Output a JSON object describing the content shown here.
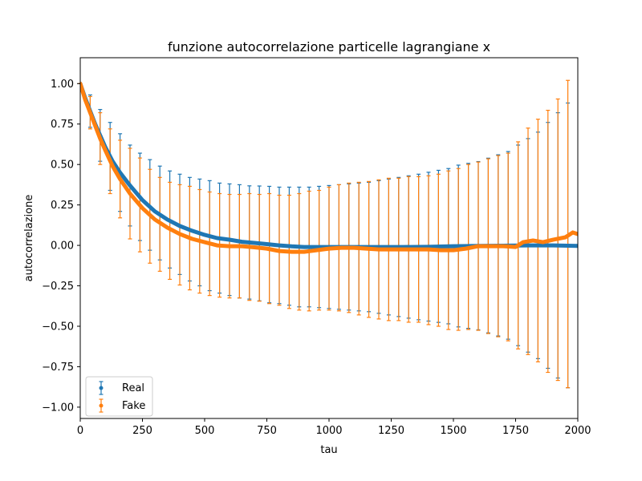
{
  "chart_data": {
    "type": "scatter",
    "title": "funzione autocorrelazione particelle lagrangiane x",
    "xlabel": "tau",
    "ylabel": "autocorrelazione",
    "xlim": [
      0,
      2000
    ],
    "ylim": [
      -1.07,
      1.16
    ],
    "xticks": [
      0,
      250,
      500,
      750,
      1000,
      1250,
      1500,
      1750,
      2000
    ],
    "xtick_labels": [
      "0",
      "250",
      "500",
      "750",
      "1000",
      "1250",
      "1500",
      "1750",
      "2000"
    ],
    "yticks": [
      -1.0,
      -0.75,
      -0.5,
      -0.25,
      0.0,
      0.25,
      0.5,
      0.75,
      1.0
    ],
    "ytick_labels": [
      "−1.00",
      "−0.75",
      "−0.50",
      "−0.25",
      "0.00",
      "0.25",
      "0.50",
      "0.75",
      "1.00"
    ],
    "grid": false,
    "legend_position": "lower-left",
    "series": [
      {
        "name": "Real",
        "color": "#1f77b4",
        "errorbars": {
          "tau": [
            0,
            40,
            80,
            120,
            160,
            200,
            240,
            280,
            320,
            360,
            400,
            440,
            480,
            520,
            560,
            600,
            640,
            680,
            720,
            760,
            800,
            840,
            880,
            920,
            960,
            1000,
            1040,
            1080,
            1120,
            1160,
            1200,
            1240,
            1280,
            1320,
            1360,
            1400,
            1440,
            1480,
            1520,
            1560,
            1600,
            1640,
            1680,
            1720,
            1760,
            1800,
            1840,
            1880,
            1920,
            1960
          ],
          "value": [
            1.0,
            0.83,
            0.68,
            0.55,
            0.45,
            0.37,
            0.3,
            0.25,
            0.2,
            0.16,
            0.13,
            0.1,
            0.08,
            0.06,
            0.045,
            0.035,
            0.025,
            0.018,
            0.012,
            0.005,
            0.0,
            -0.005,
            -0.01,
            -0.01,
            -0.01,
            -0.01,
            -0.01,
            -0.01,
            -0.01,
            -0.01,
            -0.01,
            -0.01,
            -0.01,
            -0.01,
            -0.01,
            -0.008,
            -0.006,
            -0.005,
            -0.004,
            -0.003,
            -0.002,
            -0.001,
            0.0,
            0.0,
            0.0,
            0.0,
            0.0,
            0.0,
            0.0,
            0.0
          ],
          "error": [
            0.0,
            0.1,
            0.16,
            0.21,
            0.24,
            0.25,
            0.27,
            0.28,
            0.29,
            0.3,
            0.31,
            0.32,
            0.33,
            0.34,
            0.34,
            0.345,
            0.35,
            0.35,
            0.355,
            0.36,
            0.36,
            0.365,
            0.37,
            0.37,
            0.375,
            0.38,
            0.385,
            0.39,
            0.395,
            0.4,
            0.41,
            0.42,
            0.43,
            0.44,
            0.45,
            0.46,
            0.47,
            0.48,
            0.5,
            0.51,
            0.52,
            0.54,
            0.56,
            0.58,
            0.62,
            0.66,
            0.7,
            0.76,
            0.82,
            0.88
          ]
        }
      },
      {
        "name": "Fake",
        "color": "#ff7f0e",
        "errorbars": {
          "tau": [
            0,
            40,
            80,
            120,
            160,
            200,
            240,
            280,
            320,
            360,
            400,
            440,
            480,
            520,
            560,
            600,
            640,
            680,
            720,
            760,
            800,
            840,
            880,
            920,
            960,
            1000,
            1040,
            1080,
            1120,
            1160,
            1200,
            1240,
            1280,
            1320,
            1360,
            1400,
            1440,
            1480,
            1520,
            1560,
            1600,
            1640,
            1680,
            1720,
            1760,
            1800,
            1840,
            1880,
            1920,
            1960
          ],
          "value": [
            1.0,
            0.82,
            0.66,
            0.52,
            0.41,
            0.32,
            0.25,
            0.18,
            0.13,
            0.09,
            0.065,
            0.045,
            0.025,
            0.01,
            0.0,
            -0.005,
            -0.005,
            -0.01,
            -0.015,
            -0.02,
            -0.03,
            -0.04,
            -0.04,
            -0.035,
            -0.03,
            -0.02,
            -0.015,
            -0.015,
            -0.02,
            -0.025,
            -0.025,
            -0.025,
            -0.025,
            -0.025,
            -0.025,
            -0.03,
            -0.03,
            -0.03,
            -0.025,
            -0.01,
            -0.005,
            -0.005,
            -0.005,
            -0.01,
            0.0,
            0.025,
            0.03,
            0.025,
            0.035,
            0.07
          ],
          "error": [
            0.0,
            0.1,
            0.16,
            0.2,
            0.24,
            0.28,
            0.29,
            0.29,
            0.29,
            0.3,
            0.31,
            0.32,
            0.32,
            0.32,
            0.32,
            0.32,
            0.32,
            0.33,
            0.33,
            0.34,
            0.34,
            0.35,
            0.36,
            0.37,
            0.37,
            0.38,
            0.39,
            0.4,
            0.41,
            0.42,
            0.43,
            0.44,
            0.44,
            0.45,
            0.45,
            0.46,
            0.47,
            0.49,
            0.5,
            0.51,
            0.52,
            0.54,
            0.56,
            0.58,
            0.64,
            0.7,
            0.75,
            0.81,
            0.87,
            0.95
          ]
        },
        "curve": {
          "tau": [
            0,
            20,
            40,
            60,
            80,
            100,
            130,
            160,
            200,
            250,
            300,
            350,
            400,
            450,
            500,
            550,
            600,
            650,
            700,
            750,
            800,
            850,
            900,
            950,
            1000,
            1050,
            1100,
            1150,
            1200,
            1250,
            1300,
            1350,
            1400,
            1450,
            1500,
            1550,
            1600,
            1650,
            1700,
            1750,
            1780,
            1820,
            1860,
            1900,
            1950,
            1980,
            2000
          ],
          "value": [
            1.0,
            0.9,
            0.82,
            0.74,
            0.66,
            0.59,
            0.49,
            0.41,
            0.32,
            0.23,
            0.16,
            0.11,
            0.07,
            0.04,
            0.02,
            0.0,
            -0.005,
            -0.005,
            -0.012,
            -0.02,
            -0.035,
            -0.04,
            -0.04,
            -0.03,
            -0.02,
            -0.015,
            -0.015,
            -0.02,
            -0.025,
            -0.025,
            -0.025,
            -0.025,
            -0.025,
            -0.03,
            -0.03,
            -0.02,
            -0.005,
            -0.005,
            -0.005,
            -0.01,
            0.02,
            0.03,
            0.02,
            0.035,
            0.05,
            0.08,
            0.07
          ]
        }
      }
    ],
    "real_curve": {
      "tau": [
        0,
        20,
        40,
        60,
        80,
        100,
        130,
        160,
        200,
        250,
        300,
        350,
        400,
        450,
        500,
        550,
        600,
        650,
        700,
        750,
        800,
        850,
        900,
        950,
        1000,
        1100,
        1200,
        1300,
        1400,
        1500,
        1600,
        1700,
        1800,
        1900,
        2000
      ],
      "value": [
        1.0,
        0.91,
        0.83,
        0.75,
        0.68,
        0.61,
        0.52,
        0.45,
        0.37,
        0.28,
        0.21,
        0.16,
        0.12,
        0.09,
        0.065,
        0.045,
        0.035,
        0.022,
        0.015,
        0.008,
        0.0,
        -0.006,
        -0.01,
        -0.01,
        -0.01,
        -0.01,
        -0.01,
        -0.01,
        -0.009,
        -0.005,
        -0.003,
        -0.002,
        0.0,
        0.0,
        -0.003
      ]
    }
  }
}
